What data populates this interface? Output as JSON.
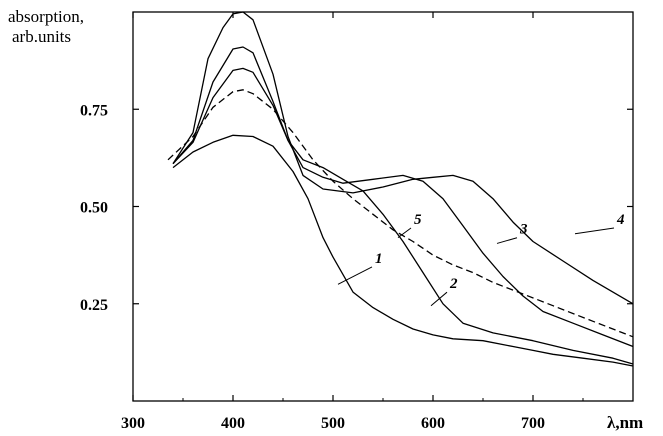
{
  "chart_data": {
    "type": "line",
    "ylabel": [
      "absorption,",
      "arb.units"
    ],
    "xlabel": "λ,nm",
    "xlim": [
      300,
      800
    ],
    "ylim": [
      0.0,
      1.0
    ],
    "x_ticks": [
      300,
      400,
      500,
      600,
      700
    ],
    "x_tick_labels": [
      "300",
      "400",
      "500",
      "600",
      "700"
    ],
    "y_ticks": [
      0.25,
      0.5,
      0.75
    ],
    "y_tick_labels": [
      "0.25",
      "0.50",
      "0.75"
    ],
    "grid": false,
    "series": [
      {
        "name": "1",
        "style": "solid",
        "color": "#000000",
        "x": [
          340,
          360,
          380,
          400,
          420,
          440,
          460,
          475,
          490,
          500,
          520,
          540,
          560,
          580,
          600,
          620,
          650,
          680,
          700,
          720,
          750,
          780,
          800
        ],
        "y": [
          0.6,
          0.64,
          0.665,
          0.683,
          0.68,
          0.655,
          0.59,
          0.52,
          0.42,
          0.37,
          0.28,
          0.24,
          0.21,
          0.185,
          0.17,
          0.16,
          0.155,
          0.14,
          0.13,
          0.12,
          0.11,
          0.1,
          0.09
        ]
      },
      {
        "name": "2",
        "style": "solid",
        "color": "#000000",
        "x": [
          340,
          360,
          380,
          400,
          410,
          420,
          440,
          455,
          470,
          490,
          510,
          530,
          550,
          570,
          590,
          610,
          630,
          660,
          700,
          740,
          780,
          800
        ],
        "y": [
          0.61,
          0.665,
          0.78,
          0.85,
          0.855,
          0.845,
          0.76,
          0.67,
          0.62,
          0.6,
          0.57,
          0.54,
          0.48,
          0.41,
          0.33,
          0.25,
          0.2,
          0.175,
          0.155,
          0.13,
          0.11,
          0.095
        ]
      },
      {
        "name": "3",
        "style": "solid",
        "color": "#000000",
        "x": [
          340,
          360,
          380,
          400,
          410,
          420,
          440,
          455,
          470,
          490,
          510,
          540,
          570,
          590,
          610,
          630,
          650,
          670,
          690,
          710,
          740,
          770,
          800
        ],
        "y": [
          0.61,
          0.67,
          0.82,
          0.905,
          0.91,
          0.895,
          0.77,
          0.67,
          0.6,
          0.575,
          0.56,
          0.57,
          0.58,
          0.565,
          0.52,
          0.45,
          0.38,
          0.32,
          0.27,
          0.23,
          0.2,
          0.17,
          0.14
        ]
      },
      {
        "name": "4",
        "style": "solid",
        "color": "#000000",
        "x": [
          340,
          360,
          375,
          390,
          400,
          410,
          420,
          440,
          455,
          470,
          490,
          520,
          550,
          580,
          600,
          620,
          640,
          660,
          680,
          700,
          730,
          760,
          800
        ],
        "y": [
          0.61,
          0.69,
          0.88,
          0.96,
          0.995,
          1.0,
          0.98,
          0.84,
          0.68,
          0.58,
          0.545,
          0.535,
          0.55,
          0.57,
          0.575,
          0.58,
          0.565,
          0.52,
          0.46,
          0.41,
          0.36,
          0.31,
          0.25
        ]
      },
      {
        "name": "5",
        "style": "dashed",
        "color": "#000000",
        "x": [
          335,
          360,
          380,
          400,
          410,
          420,
          440,
          460,
          480,
          500,
          520,
          540,
          560,
          580,
          600,
          620,
          640,
          660,
          690,
          720,
          760,
          800
        ],
        "y": [
          0.62,
          0.68,
          0.755,
          0.795,
          0.8,
          0.79,
          0.75,
          0.69,
          0.62,
          0.565,
          0.52,
          0.48,
          0.44,
          0.41,
          0.375,
          0.35,
          0.33,
          0.305,
          0.275,
          0.245,
          0.205,
          0.165
        ]
      }
    ],
    "series_labels": [
      {
        "text": "1",
        "x": 545,
        "y": 0.355,
        "leader_to": [
          505,
          0.3
        ]
      },
      {
        "text": "2",
        "x": 620,
        "y": 0.29,
        "leader_to": [
          598,
          0.245
        ]
      },
      {
        "text": "3",
        "x": 690,
        "y": 0.43,
        "leader_to": [
          664,
          0.405
        ]
      },
      {
        "text": "4",
        "x": 787,
        "y": 0.455,
        "leader_to": [
          742,
          0.43
        ]
      },
      {
        "text": "5",
        "x": 584,
        "y": 0.455,
        "leader_to": [
          565,
          0.42
        ]
      }
    ]
  }
}
